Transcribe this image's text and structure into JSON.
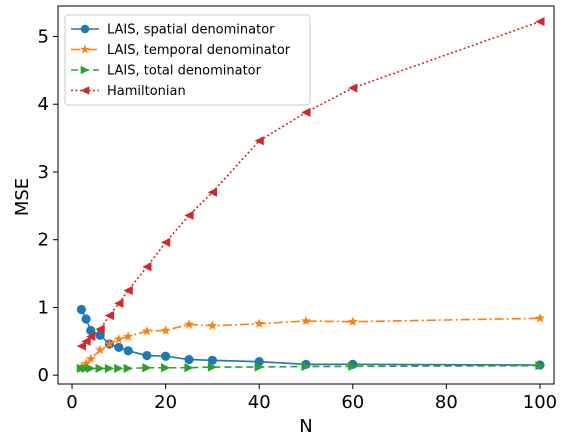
{
  "chart_data": {
    "type": "line",
    "xlabel": "N",
    "ylabel": "MSE",
    "xlim": [
      -3,
      103
    ],
    "ylim": [
      -0.13,
      5.45
    ],
    "xticks": [
      0,
      20,
      40,
      60,
      80,
      100
    ],
    "yticks": [
      0,
      1,
      2,
      3,
      4,
      5
    ],
    "grid": false,
    "legend_position": "top-left",
    "series": [
      {
        "name": "LAIS, spatial denominator",
        "color": "#1f77b4",
        "marker": "circle",
        "linestyle": "solid",
        "x": [
          2,
          3,
          4,
          6,
          8,
          10,
          12,
          16,
          20,
          25,
          30,
          40,
          50,
          60,
          100
        ],
        "y": [
          0.97,
          0.83,
          0.66,
          0.59,
          0.46,
          0.41,
          0.36,
          0.29,
          0.28,
          0.23,
          0.22,
          0.2,
          0.16,
          0.16,
          0.15
        ]
      },
      {
        "name": "LAIS, temporal denominator",
        "color": "#ff7f0e",
        "marker": "star",
        "linestyle": "dashdot",
        "x": [
          2,
          3,
          4,
          6,
          8,
          10,
          12,
          16,
          20,
          25,
          30,
          40,
          50,
          60,
          100
        ],
        "y": [
          0.12,
          0.17,
          0.24,
          0.37,
          0.46,
          0.53,
          0.57,
          0.65,
          0.66,
          0.75,
          0.73,
          0.76,
          0.8,
          0.79,
          0.84
        ]
      },
      {
        "name": "LAIS, total denominator",
        "color": "#2ca02c",
        "marker": "triangle-right",
        "linestyle": "dashed",
        "x": [
          2,
          3,
          4,
          6,
          8,
          10,
          12,
          16,
          20,
          25,
          30,
          40,
          50,
          60,
          100
        ],
        "y": [
          0.1,
          0.1,
          0.1,
          0.1,
          0.1,
          0.1,
          0.1,
          0.11,
          0.11,
          0.11,
          0.12,
          0.12,
          0.13,
          0.13,
          0.14
        ]
      },
      {
        "name": "Hamiltonian",
        "color": "#d62728",
        "marker": "triangle-left",
        "linestyle": "dotted",
        "x": [
          2,
          3,
          4,
          6,
          8,
          10,
          12,
          16,
          20,
          25,
          30,
          40,
          50,
          60,
          100
        ],
        "y": [
          0.43,
          0.5,
          0.57,
          0.68,
          0.88,
          1.06,
          1.25,
          1.6,
          1.96,
          2.36,
          2.7,
          3.46,
          3.88,
          4.24,
          5.22
        ]
      }
    ]
  }
}
